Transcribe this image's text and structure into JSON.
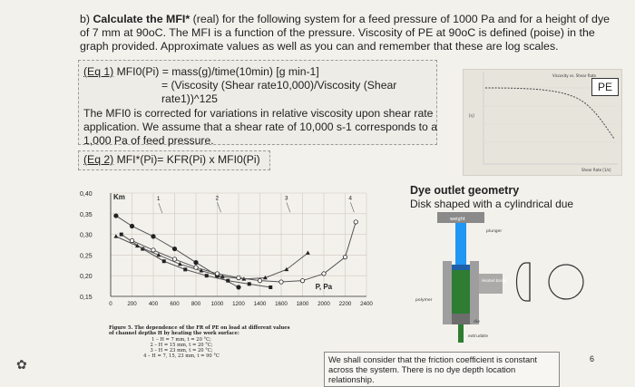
{
  "question": {
    "label": "b) ",
    "bold_part": "Calculate the MFI*",
    "text": " (real) for the following system for a feed pressure of 1000 Pa and for a height of dye of 7 mm at 90oC. The MFI is a function of the pressure. Viscosity of PE at 90oC is defined (poise) in the graph provided. Approximate values as well as you can and remember that these are log scales."
  },
  "eq1": {
    "label": "(Eq 1)",
    "line1": " MFI0(Pi) = mass(g)/time(10min) [g min-1]",
    "line2": "= (Viscosity (Shear rate10,000)/Viscosity (Shear rate1))^125",
    "line3": "The MFI0 is corrected for variations in relative viscosity upon shear rate application. We assume that a shear rate of 10,000 s-1 corresponds to a 1,000 Pa of feed pressure."
  },
  "eq2": {
    "label": "(Eq 2)",
    "text": " MFI*(Pi)= KFR(Pi) x MFI0(Pi)"
  },
  "viscosity_graph": {
    "title": "Viscosity vs. Shear Rate",
    "y_label": "[η]",
    "x_label": "Shear Rate [1/s]",
    "badge": "PE"
  },
  "chart_data": {
    "type": "line",
    "ylabel": "Km",
    "xlabel": "P, Pa",
    "xlim": [
      0,
      2400
    ],
    "ylim": [
      0.15,
      0.4
    ],
    "x_ticks": [
      "0",
      "200",
      "400",
      "600",
      "800",
      "1000",
      "1200",
      "1400",
      "1600",
      "1800",
      "2000",
      "2200",
      "2400"
    ],
    "y_ticks": [
      "0,15",
      "0,20",
      "0,25",
      "0,30",
      "0,35",
      "0,40"
    ],
    "series": [
      {
        "name": "1",
        "label_x": 450,
        "label_y": 0.382,
        "x": [
          50,
          200,
          400,
          600,
          800,
          1000,
          1200
        ],
        "y": [
          0.345,
          0.32,
          0.295,
          0.265,
          0.232,
          0.2,
          0.172
        ]
      },
      {
        "name": "2",
        "label_x": 1000,
        "label_y": 0.384,
        "x": [
          100,
          300,
          500,
          700,
          900,
          1100,
          1300,
          1500
        ],
        "y": [
          0.3,
          0.265,
          0.235,
          0.215,
          0.2,
          0.188,
          0.18,
          0.172
        ]
      },
      {
        "name": "3",
        "label_x": 1650,
        "label_y": 0.384,
        "x": [
          50,
          250,
          450,
          650,
          850,
          1050,
          1250,
          1450,
          1650,
          1850
        ],
        "y": [
          0.295,
          0.272,
          0.25,
          0.228,
          0.212,
          0.198,
          0.192,
          0.195,
          0.215,
          0.255
        ]
      },
      {
        "name": "4",
        "label_x": 2250,
        "label_y": 0.384,
        "x": [
          200,
          400,
          600,
          800,
          1000,
          1200,
          1400,
          1600,
          1800,
          2000,
          2200,
          2300
        ],
        "y": [
          0.285,
          0.262,
          0.24,
          0.22,
          0.205,
          0.195,
          0.188,
          0.185,
          0.188,
          0.205,
          0.245,
          0.33
        ]
      }
    ]
  },
  "caption": {
    "title": "Figure 5. The dependence of the FR of PE on load at different values of channel depths H by heating the work surface:",
    "items": [
      "1 – H = 7 mm, t = 20 °C;",
      "2 – H = 15 mm, t = 20 °C;",
      "3 – H = 23 mm, t = 20 °C;",
      "4 – H = 7, 15, 23 mm, t = 90 °C"
    ]
  },
  "dye": {
    "title": "Dye outlet geometry",
    "subtitle": "Disk shaped with a cylindrical due",
    "labels": {
      "weight": "weight",
      "plunger": "plunger",
      "heated_barrel": "Heated barrel",
      "polymer": "polymer",
      "die": "die",
      "extrudate": "extrudate"
    }
  },
  "note": "We shall consider that the friction coefficient is constant across the system. There is no dye depth location relationship.",
  "page_number": "6",
  "colors": {
    "line": "#555555",
    "die_green": "#2e7d32",
    "plunger_blue": "#2196f3",
    "barrel_gray": "#9e9e9e",
    "marker": "#222222"
  }
}
